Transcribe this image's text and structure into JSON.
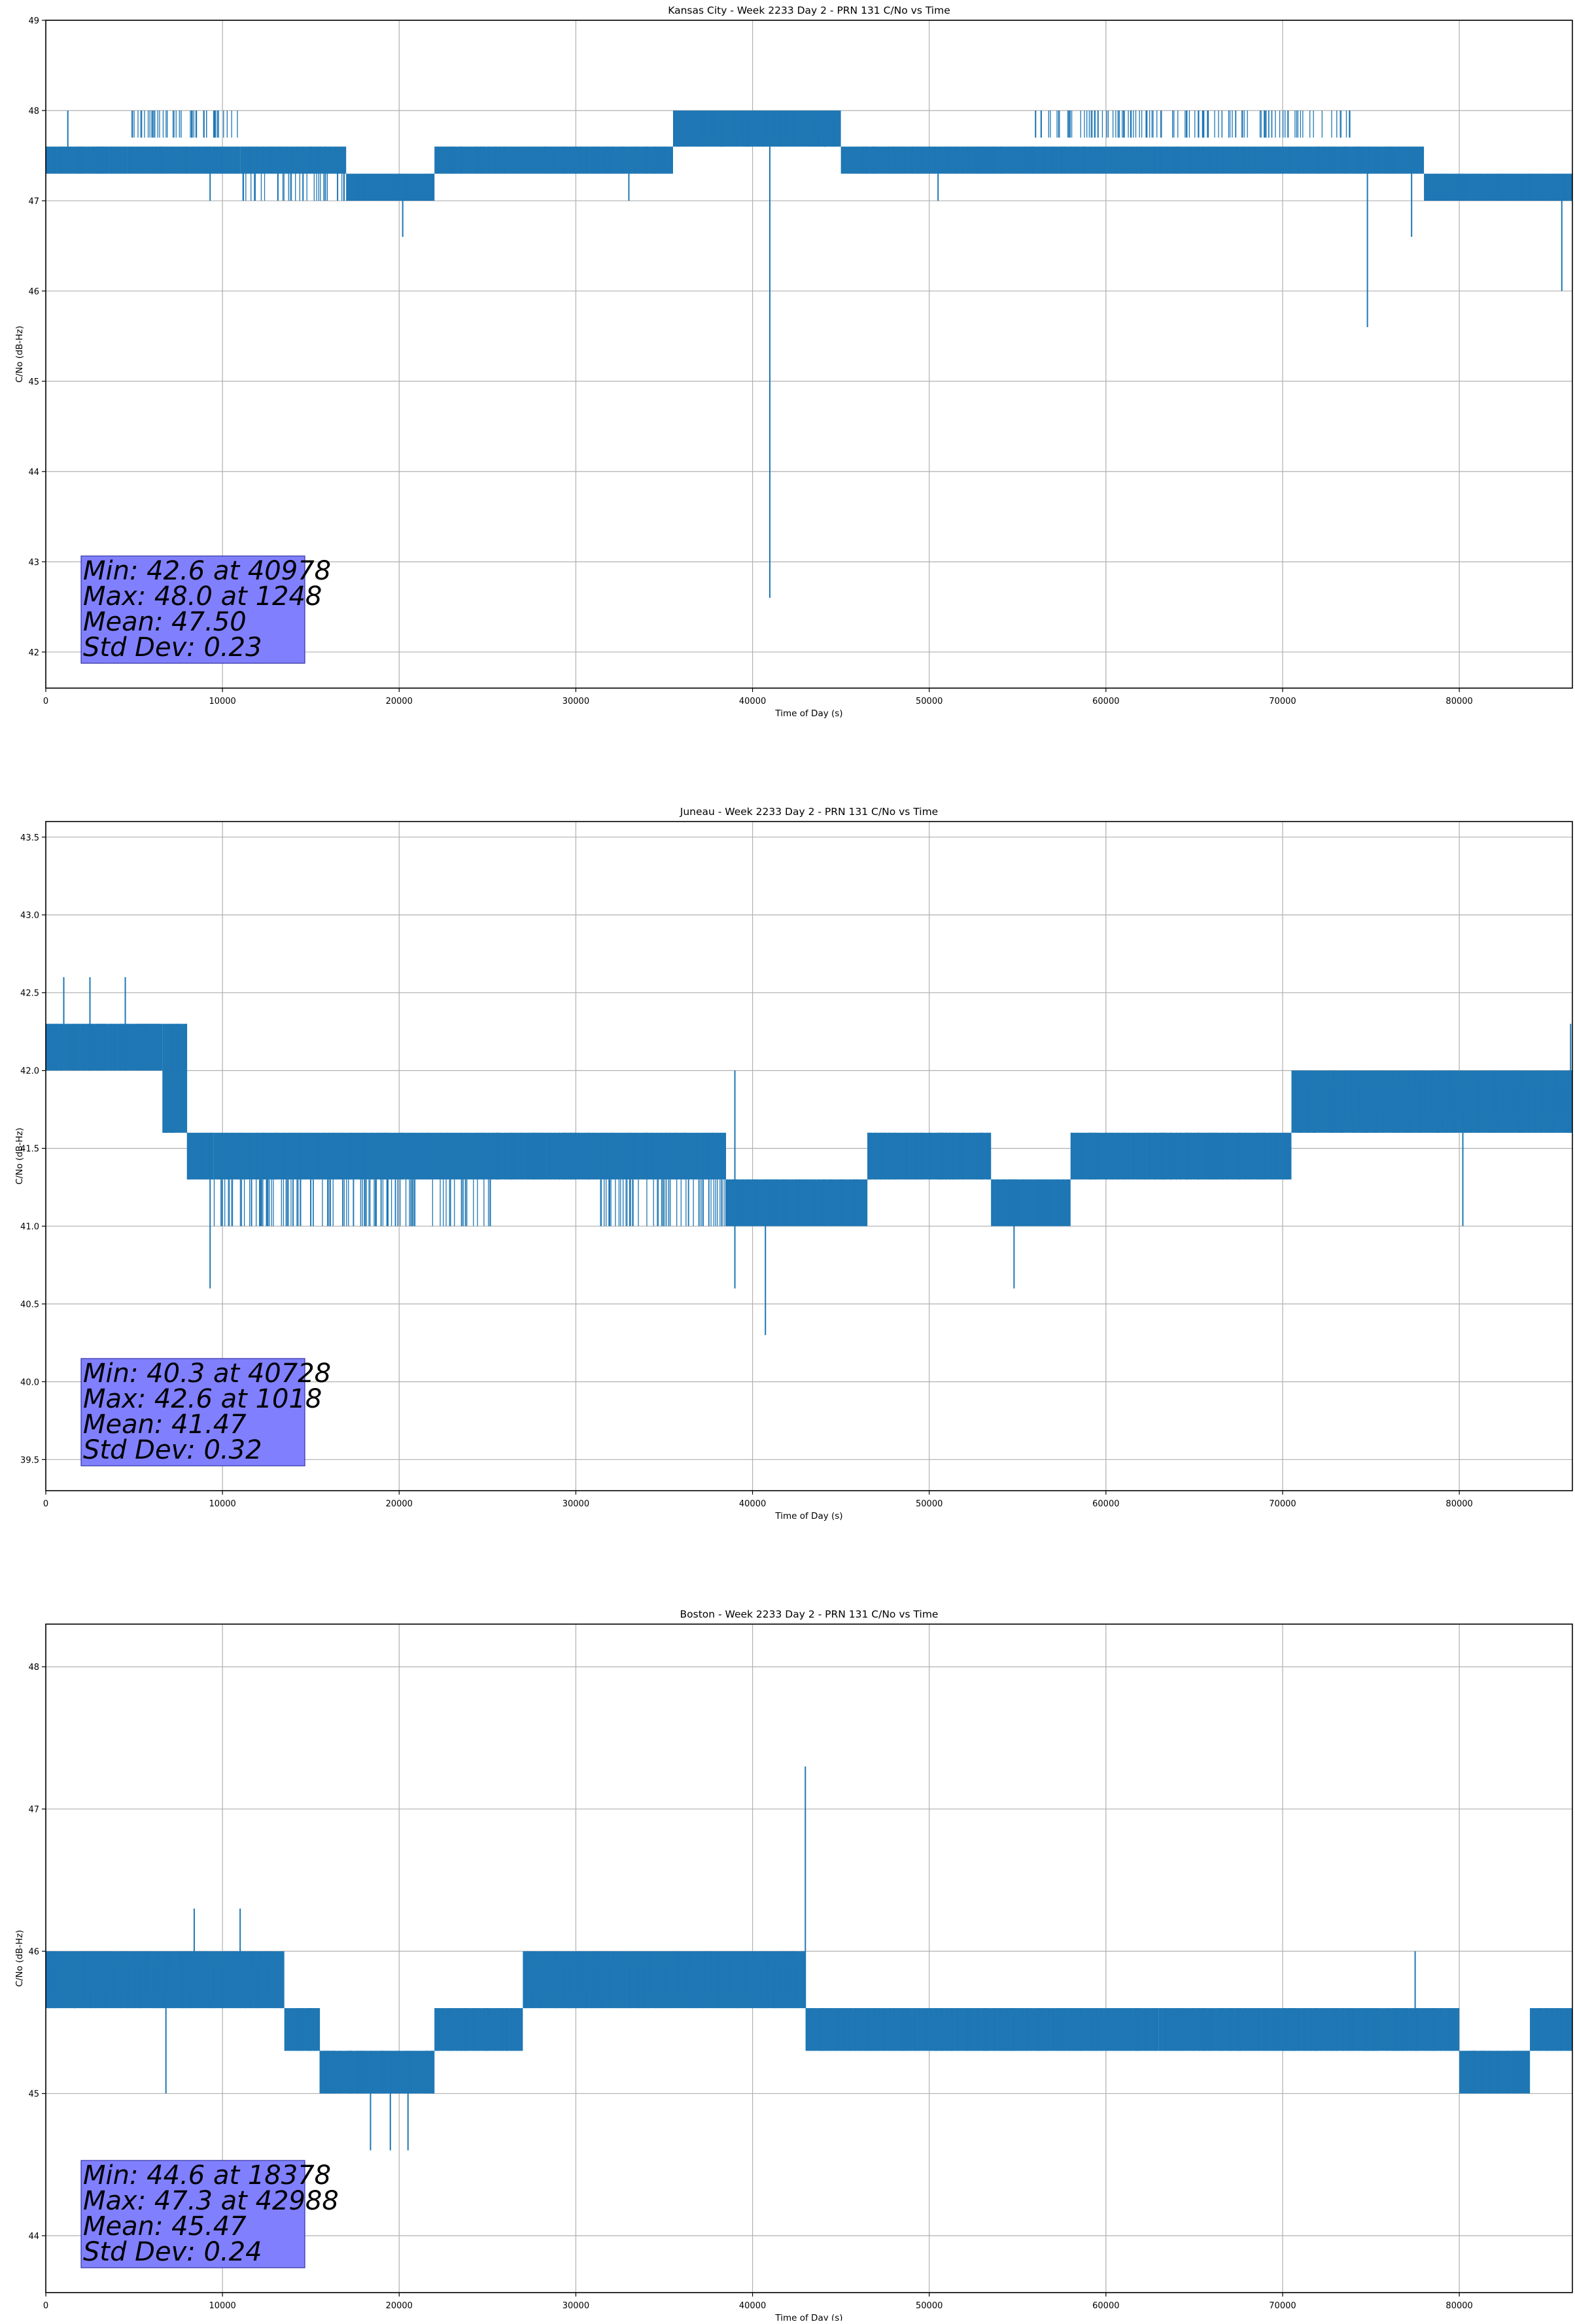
{
  "theme": {
    "series_color": "#1f77b4",
    "stats_box_color": "#8080ff",
    "grid_color": "#b0b0b0"
  },
  "chart_data": [
    {
      "type": "line",
      "title": "Kansas City - Week 2233 Day 2 - PRN 131 C/No vs Time",
      "xlabel": "Time of Day (s)",
      "ylabel": "C/No (dB-Hz)",
      "xlim": [
        0,
        86400
      ],
      "ylim": [
        41.6,
        49.0
      ],
      "x_ticks": [
        0,
        10000,
        20000,
        30000,
        40000,
        50000,
        60000,
        70000,
        80000
      ],
      "y_ticks": [
        42,
        43,
        44,
        45,
        46,
        47,
        48,
        49
      ],
      "y_tick_decimals": 0,
      "grid": true,
      "band_levels": [
        47.3,
        47.6
      ],
      "bands": [
        {
          "from": 0,
          "to": 4600,
          "low": 47.3,
          "high": 47.6
        },
        {
          "from": 4600,
          "to": 11000,
          "low": 47.3,
          "high": 48.0
        },
        {
          "from": 11000,
          "to": 17000,
          "low": 47.0,
          "high": 47.6
        },
        {
          "from": 17000,
          "to": 22000,
          "low": 47.0,
          "high": 47.3
        },
        {
          "from": 22000,
          "to": 35500,
          "low": 47.3,
          "high": 47.6
        },
        {
          "from": 35500,
          "to": 45000,
          "low": 47.6,
          "high": 48.0
        },
        {
          "from": 45000,
          "to": 56000,
          "low": 47.3,
          "high": 47.6
        },
        {
          "from": 56000,
          "to": 74000,
          "low": 47.3,
          "high": 48.0
        },
        {
          "from": 74000,
          "to": 78000,
          "low": 47.3,
          "high": 47.6
        },
        {
          "from": 78000,
          "to": 86400,
          "low": 47.0,
          "high": 47.3
        }
      ],
      "spikes": [
        {
          "x": 1248,
          "low": 47.6,
          "high": 48.0
        },
        {
          "x": 9300,
          "low": 47.0,
          "high": 47.6
        },
        {
          "x": 20200,
          "low": 46.6,
          "high": 47.3
        },
        {
          "x": 33000,
          "low": 47.0,
          "high": 47.3
        },
        {
          "x": 40978,
          "low": 42.6,
          "high": 47.6
        },
        {
          "x": 50500,
          "low": 47.0,
          "high": 47.3
        },
        {
          "x": 74800,
          "low": 45.6,
          "high": 47.3
        },
        {
          "x": 77300,
          "low": 46.6,
          "high": 47.3
        },
        {
          "x": 85800,
          "low": 46.0,
          "high": 47.3
        }
      ],
      "stats": [
        "Min: 42.6 at 40978",
        "Max: 48.0 at 1248",
        "Mean: 47.50",
        "Std Dev: 0.23"
      ]
    },
    {
      "type": "line",
      "title": "Juneau - Week 2233 Day 2 - PRN 131 C/No vs Time",
      "xlabel": "Time of Day (s)",
      "ylabel": "C/No (dB-Hz)",
      "xlim": [
        0,
        86400
      ],
      "ylim": [
        39.3,
        43.6
      ],
      "x_ticks": [
        0,
        10000,
        20000,
        30000,
        40000,
        50000,
        60000,
        70000,
        80000
      ],
      "y_ticks": [
        39.5,
        40.0,
        40.5,
        41.0,
        41.5,
        42.0,
        42.5,
        43.0,
        43.5
      ],
      "y_tick_decimals": 1,
      "grid": true,
      "band_levels": [
        41.3,
        41.6
      ],
      "bands": [
        {
          "from": 0,
          "to": 6600,
          "low": 42.0,
          "high": 42.3
        },
        {
          "from": 6600,
          "to": 8000,
          "low": 41.6,
          "high": 42.3
        },
        {
          "from": 8000,
          "to": 9500,
          "low": 41.3,
          "high": 41.6
        },
        {
          "from": 9500,
          "to": 26000,
          "low": 41.0,
          "high": 41.6
        },
        {
          "from": 26000,
          "to": 31000,
          "low": 41.3,
          "high": 41.6
        },
        {
          "from": 31000,
          "to": 38500,
          "low": 41.0,
          "high": 41.6
        },
        {
          "from": 38500,
          "to": 46500,
          "low": 41.0,
          "high": 41.3
        },
        {
          "from": 46500,
          "to": 53500,
          "low": 41.3,
          "high": 41.6
        },
        {
          "from": 53500,
          "to": 58000,
          "low": 41.0,
          "high": 41.3
        },
        {
          "from": 58000,
          "to": 64000,
          "low": 41.3,
          "high": 41.6
        },
        {
          "from": 64000,
          "to": 70500,
          "low": 41.3,
          "high": 41.6
        },
        {
          "from": 70500,
          "to": 80000,
          "low": 41.6,
          "high": 42.0
        },
        {
          "from": 80000,
          "to": 86400,
          "low": 41.6,
          "high": 42.0
        }
      ],
      "spikes": [
        {
          "x": 1018,
          "low": 42.3,
          "high": 42.6
        },
        {
          "x": 2500,
          "low": 42.3,
          "high": 42.6
        },
        {
          "x": 4500,
          "low": 42.3,
          "high": 42.6
        },
        {
          "x": 9300,
          "low": 40.6,
          "high": 41.3
        },
        {
          "x": 39000,
          "low": 40.6,
          "high": 42.0
        },
        {
          "x": 40728,
          "low": 40.3,
          "high": 41.3
        },
        {
          "x": 54800,
          "low": 40.6,
          "high": 41.3
        },
        {
          "x": 80200,
          "low": 41.0,
          "high": 41.6
        },
        {
          "x": 86300,
          "low": 41.6,
          "high": 42.3
        }
      ],
      "stats": [
        "Min: 40.3 at 40728",
        "Max: 42.6 at 1018",
        "Mean: 41.47",
        "Std Dev: 0.32"
      ]
    },
    {
      "type": "line",
      "title": "Boston - Week 2233 Day 2 - PRN 131 C/No vs Time",
      "xlabel": "Time of Day (s)",
      "ylabel": "C/No (dB-Hz)",
      "xlim": [
        0,
        86400
      ],
      "ylim": [
        43.6,
        48.3
      ],
      "x_ticks": [
        0,
        10000,
        20000,
        30000,
        40000,
        50000,
        60000,
        70000,
        80000
      ],
      "y_ticks": [
        44,
        45,
        46,
        47,
        48
      ],
      "y_tick_decimals": 0,
      "grid": true,
      "band_levels": [
        45.3,
        45.6
      ],
      "bands": [
        {
          "from": 0,
          "to": 13500,
          "low": 45.6,
          "high": 46.0
        },
        {
          "from": 13500,
          "to": 15500,
          "low": 45.3,
          "high": 45.6
        },
        {
          "from": 15500,
          "to": 22000,
          "low": 45.0,
          "high": 45.3
        },
        {
          "from": 22000,
          "to": 27000,
          "low": 45.3,
          "high": 45.6
        },
        {
          "from": 27000,
          "to": 43000,
          "low": 45.6,
          "high": 46.0
        },
        {
          "from": 43000,
          "to": 50000,
          "low": 45.3,
          "high": 45.6
        },
        {
          "from": 50000,
          "to": 63000,
          "low": 45.3,
          "high": 45.6
        },
        {
          "from": 63000,
          "to": 80000,
          "low": 45.3,
          "high": 45.6
        },
        {
          "from": 80000,
          "to": 84000,
          "low": 45.0,
          "high": 45.3
        },
        {
          "from": 84000,
          "to": 86400,
          "low": 45.3,
          "high": 45.6
        }
      ],
      "spikes": [
        {
          "x": 6800,
          "low": 45.0,
          "high": 45.6
        },
        {
          "x": 8400,
          "low": 46.0,
          "high": 46.3
        },
        {
          "x": 11000,
          "low": 46.0,
          "high": 46.3
        },
        {
          "x": 18378,
          "low": 44.6,
          "high": 45.3
        },
        {
          "x": 19500,
          "low": 44.6,
          "high": 45.3
        },
        {
          "x": 20500,
          "low": 44.6,
          "high": 45.3
        },
        {
          "x": 42988,
          "low": 45.6,
          "high": 47.3
        },
        {
          "x": 77500,
          "low": 45.6,
          "high": 46.0
        }
      ],
      "stats": [
        "Min: 44.6 at 18378",
        "Max: 47.3 at 42988",
        "Mean: 45.47",
        "Std Dev: 0.24"
      ]
    }
  ]
}
